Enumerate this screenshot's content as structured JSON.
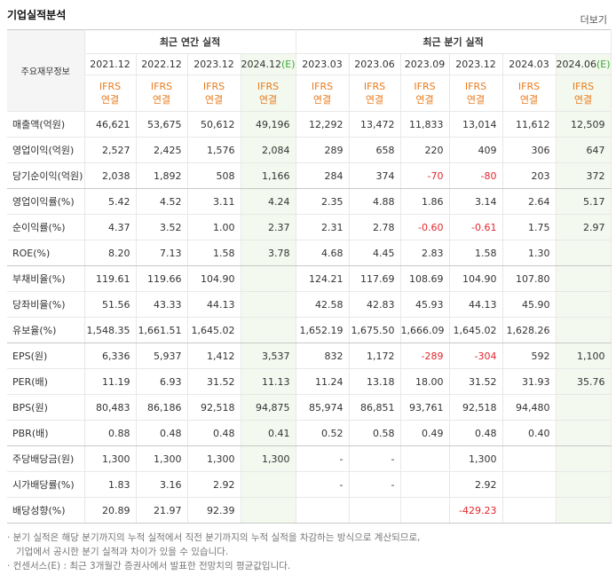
{
  "header": {
    "title": "기업실적분석",
    "more": "더보기"
  },
  "table": {
    "row_header": "주요재무정보",
    "groups": [
      {
        "label": "최근 연간 실적",
        "span": 4
      },
      {
        "label": "최근 분기 실적",
        "span": 6
      }
    ],
    "columns": [
      {
        "period": "2021.12",
        "std": "IFRS",
        "basis": "연결"
      },
      {
        "period": "2022.12",
        "std": "IFRS",
        "basis": "연결"
      },
      {
        "period": "2023.12",
        "std": "IFRS",
        "basis": "연결"
      },
      {
        "period": "2024.12",
        "estimate": "(E)",
        "std": "IFRS",
        "basis": "연결"
      },
      {
        "period": "2023.03",
        "std": "IFRS",
        "basis": "연결"
      },
      {
        "period": "2023.06",
        "std": "IFRS",
        "basis": "연결"
      },
      {
        "period": "2023.09",
        "std": "IFRS",
        "basis": "연결"
      },
      {
        "period": "2023.12",
        "std": "IFRS",
        "basis": "연결"
      },
      {
        "period": "2024.03",
        "std": "IFRS",
        "basis": "연결"
      },
      {
        "period": "2024.06",
        "estimate": "(E)",
        "std": "IFRS",
        "basis": "연결"
      }
    ],
    "rows": [
      {
        "label": "매출액(억원)",
        "values": [
          "46,621",
          "53,675",
          "50,612",
          "49,196",
          "12,292",
          "13,472",
          "11,833",
          "13,014",
          "11,612",
          "12,509"
        ]
      },
      {
        "label": "영업이익(억원)",
        "values": [
          "2,527",
          "2,425",
          "1,576",
          "2,084",
          "289",
          "658",
          "220",
          "409",
          "306",
          "647"
        ]
      },
      {
        "label": "당기순이익(억원)",
        "values": [
          "2,038",
          "1,892",
          "508",
          "1,166",
          "284",
          "374",
          "-70",
          "-80",
          "203",
          "372"
        ]
      },
      {
        "label": "영업이익률(%)",
        "values": [
          "5.42",
          "4.52",
          "3.11",
          "4.24",
          "2.35",
          "4.88",
          "1.86",
          "3.14",
          "2.64",
          "5.17"
        ]
      },
      {
        "label": "순이익률(%)",
        "values": [
          "4.37",
          "3.52",
          "1.00",
          "2.37",
          "2.31",
          "2.78",
          "-0.60",
          "-0.61",
          "1.75",
          "2.97"
        ]
      },
      {
        "label": "ROE(%)",
        "values": [
          "8.20",
          "7.13",
          "1.58",
          "3.78",
          "4.68",
          "4.45",
          "2.83",
          "1.58",
          "1.30",
          null
        ]
      },
      {
        "label": "부채비율(%)",
        "values": [
          "119.61",
          "119.66",
          "104.90",
          null,
          "124.21",
          "117.69",
          "108.69",
          "104.90",
          "107.80",
          null
        ]
      },
      {
        "label": "당좌비율(%)",
        "values": [
          "51.56",
          "43.33",
          "44.13",
          null,
          "42.58",
          "42.83",
          "45.93",
          "44.13",
          "45.90",
          null
        ]
      },
      {
        "label": "유보율(%)",
        "values": [
          "1,548.35",
          "1,661.51",
          "1,645.02",
          null,
          "1,652.19",
          "1,675.50",
          "1,666.09",
          "1,645.02",
          "1,628.26",
          null
        ]
      },
      {
        "label": "EPS(원)",
        "values": [
          "6,336",
          "5,937",
          "1,412",
          "3,537",
          "832",
          "1,172",
          "-289",
          "-304",
          "592",
          "1,100"
        ]
      },
      {
        "label": "PER(배)",
        "values": [
          "11.19",
          "6.93",
          "31.52",
          "11.13",
          "11.24",
          "13.18",
          "18.00",
          "31.52",
          "31.93",
          "35.76"
        ]
      },
      {
        "label": "BPS(원)",
        "values": [
          "80,483",
          "86,186",
          "92,518",
          "94,875",
          "85,974",
          "86,851",
          "93,761",
          "92,518",
          "94,480",
          null
        ]
      },
      {
        "label": "PBR(배)",
        "values": [
          "0.88",
          "0.48",
          "0.48",
          "0.41",
          "0.52",
          "0.58",
          "0.49",
          "0.48",
          "0.40",
          null
        ]
      },
      {
        "label": "주당배당금(원)",
        "values": [
          "1,300",
          "1,300",
          "1,300",
          "1,300",
          "-",
          "-",
          null,
          "1,300",
          null,
          null
        ]
      },
      {
        "label": "시가배당률(%)",
        "values": [
          "1.83",
          "3.16",
          "2.92",
          null,
          "-",
          "-",
          null,
          "2.92",
          null,
          null
        ]
      },
      {
        "label": "배당성향(%)",
        "values": [
          "20.89",
          "21.97",
          "92.39",
          null,
          null,
          null,
          null,
          "-429.23",
          null,
          null
        ]
      }
    ],
    "group_ends": [
      2,
      5,
      8,
      12
    ]
  },
  "notes": [
    "분기 실적은 해당 분기까지의 누적 실적에서 직전 분기까지의 누적 실적을 차감하는 방식으로 계산되므로,",
    "기업에서 공시한 분기 실적과 차이가 있을 수 있습니다.",
    "컨센서스(E) : 최근 3개월간 증권사에서 발표한 전망치의 평균값입니다."
  ]
}
